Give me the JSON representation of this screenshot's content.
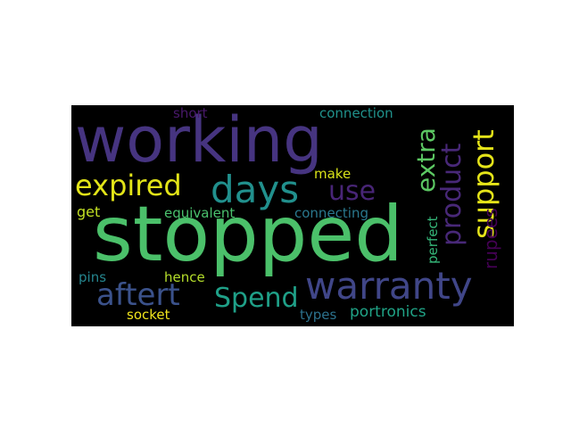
{
  "words": {
    "working": {
      "text": "working",
      "color": "#463480"
    },
    "stopped": {
      "text": "stopped",
      "color": "#4bc06a"
    },
    "warranty": {
      "text": "warranty",
      "color": "#404688"
    },
    "expired": {
      "text": "expired",
      "color": "#e2e418"
    },
    "days": {
      "text": "days",
      "color": "#21908d"
    },
    "use": {
      "text": "use",
      "color": "#482576"
    },
    "extra": {
      "text": "extra",
      "color": "#5cc863"
    },
    "product": {
      "text": "product",
      "color": "#482878"
    },
    "support": {
      "text": "support",
      "color": "#e5e419"
    },
    "aftert": {
      "text": "aftert",
      "color": "#3b528b"
    },
    "spend": {
      "text": "Spend",
      "color": "#1fa088"
    },
    "short": {
      "text": "short",
      "color": "#48186a"
    },
    "connection": {
      "text": "connection",
      "color": "#20928c"
    },
    "make": {
      "text": "make",
      "color": "#d8e219"
    },
    "get": {
      "text": "get",
      "color": "#c2df23"
    },
    "equivalent": {
      "text": "equivalent",
      "color": "#4ac16d"
    },
    "connecting": {
      "text": "connecting",
      "color": "#2a788e"
    },
    "perfect": {
      "text": "perfect",
      "color": "#35b779"
    },
    "rupees": {
      "text": "rupees",
      "color": "#440154"
    },
    "pins": {
      "text": "pins",
      "color": "#25858e"
    },
    "hence": {
      "text": "hence",
      "color": "#b5de2b"
    },
    "socket": {
      "text": "socket",
      "color": "#f1e51d"
    },
    "types": {
      "text": "types",
      "color": "#2c728e"
    },
    "portronics": {
      "text": "portronics",
      "color": "#20a386"
    }
  },
  "background": "#000000"
}
